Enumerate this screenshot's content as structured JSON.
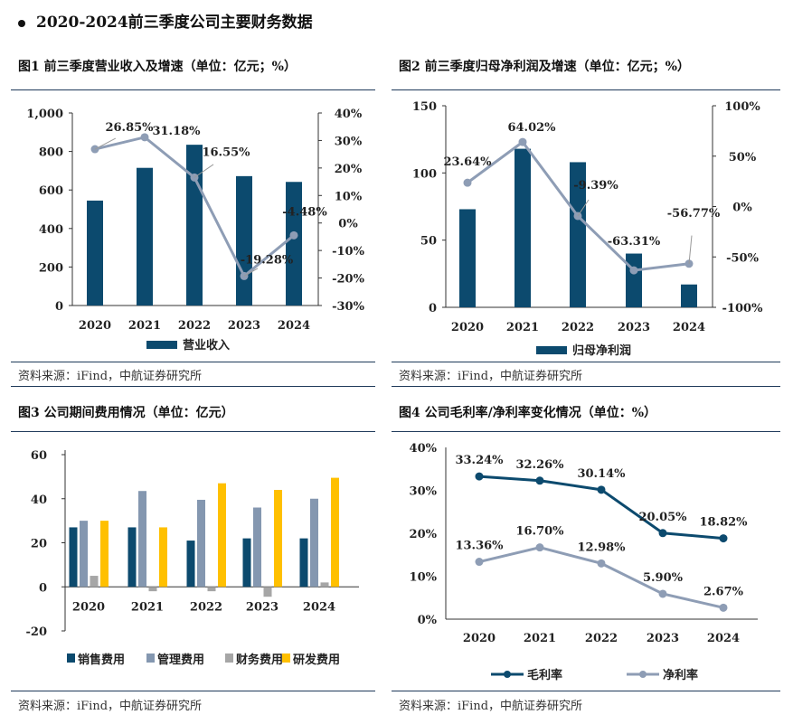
{
  "title": "2020-2024前三季度公司主要财务数据",
  "source": "资料来源：iFind，中航证券研究所",
  "colors": {
    "navy": "#0c4a6e",
    "steel": "#8497b0",
    "gray": "#a6a6a6",
    "gold": "#ffc000",
    "line_gray": "#8e9db5",
    "line_navy": "#0c4a6e"
  },
  "chart_data": [
    {
      "type": "bar+line",
      "title": "图1 前三季度营业收入及增速（单位：亿元；%）",
      "categories": [
        "2020",
        "2021",
        "2022",
        "2023",
        "2024"
      ],
      "bar_series": {
        "name": "营业收入",
        "values": [
          545,
          715,
          835,
          672,
          642
        ]
      },
      "line_series": {
        "name": "增速",
        "values": [
          26.85,
          31.18,
          16.55,
          -19.28,
          -4.48
        ],
        "labels": [
          "26.85%",
          "31.18%",
          "16.55%",
          "-19.28%",
          "-4.48%"
        ]
      },
      "ylim": [
        0,
        1000
      ],
      "yticks": [
        "0",
        "200",
        "400",
        "600",
        "800",
        "1,000"
      ],
      "y2lim": [
        -30,
        40
      ],
      "y2ticks": [
        "-30%",
        "-20%",
        "-10%",
        "0%",
        "10%",
        "20%",
        "30%",
        "40%"
      ],
      "legend": "bottom"
    },
    {
      "type": "bar+line",
      "title": "图2 前三季度归母净利润及增速（单位：亿元；%）",
      "categories": [
        "2020",
        "2021",
        "2022",
        "2023",
        "2024"
      ],
      "bar_series": {
        "name": "归母净利润",
        "values": [
          73,
          118,
          108,
          40,
          17
        ]
      },
      "line_series": {
        "name": "增速",
        "values": [
          23.64,
          64.02,
          -9.39,
          -63.31,
          -56.77
        ],
        "labels": [
          "23.64%",
          "64.02%",
          "-9.39%",
          "-63.31%",
          "-56.77%"
        ]
      },
      "ylim": [
        0,
        150
      ],
      "yticks": [
        "0",
        "50",
        "100",
        "150"
      ],
      "y2lim": [
        -100,
        100
      ],
      "y2ticks": [
        "-100%",
        "-50%",
        "0%",
        "50%",
        "100%"
      ],
      "legend": "bottom"
    },
    {
      "type": "bar",
      "title": "图3 公司期间费用情况（单位：亿元）",
      "categories": [
        "2020",
        "2021",
        "2022",
        "2023",
        "2024"
      ],
      "series": [
        {
          "name": "销售费用",
          "values": [
            27,
            27,
            21,
            22,
            22
          ]
        },
        {
          "name": "管理费用",
          "values": [
            30,
            43.5,
            39.5,
            36,
            40
          ]
        },
        {
          "name": "财务费用",
          "values": [
            5,
            -2,
            -2,
            -4.5,
            2
          ]
        },
        {
          "name": "研发费用",
          "values": [
            30,
            27,
            47,
            44,
            49.5
          ]
        }
      ],
      "ylim": [
        -20,
        60
      ],
      "yticks": [
        "-20",
        "0",
        "20",
        "40",
        "60"
      ],
      "legend": "bottom"
    },
    {
      "type": "line",
      "title": "图4 公司毛利率/净利率变化情况（单位：%）",
      "categories": [
        "2020",
        "2021",
        "2022",
        "2023",
        "2024"
      ],
      "series": [
        {
          "name": "毛利率",
          "values": [
            33.24,
            32.26,
            30.14,
            20.05,
            18.82
          ],
          "labels": [
            "33.24%",
            "32.26%",
            "30.14%",
            "20.05%",
            "18.82%"
          ]
        },
        {
          "name": "净利率",
          "values": [
            13.36,
            16.7,
            12.98,
            5.9,
            2.67
          ],
          "labels": [
            "13.36%",
            "16.70%",
            "12.98%",
            "5.90%",
            "2.67%"
          ]
        }
      ],
      "ylim": [
        0,
        40
      ],
      "yticks": [
        "0%",
        "10%",
        "20%",
        "30%",
        "40%"
      ],
      "legend": "bottom"
    }
  ]
}
